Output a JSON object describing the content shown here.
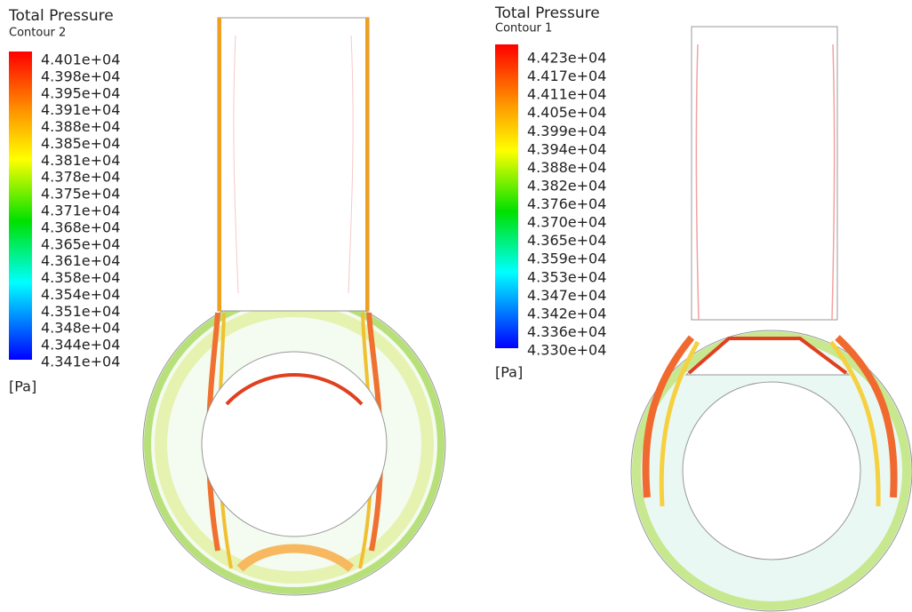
{
  "panels": [
    {
      "title": "Total Pressure",
      "subtitle": "Contour 2",
      "unit": "[Pa]",
      "labels": [
        "4.401e+04",
        "4.398e+04",
        "4.395e+04",
        "4.391e+04",
        "4.388e+04",
        "4.385e+04",
        "4.381e+04",
        "4.378e+04",
        "4.375e+04",
        "4.371e+04",
        "4.368e+04",
        "4.365e+04",
        "4.361e+04",
        "4.358e+04",
        "4.354e+04",
        "4.351e+04",
        "4.348e+04",
        "4.344e+04",
        "4.341e+04"
      ]
    },
    {
      "title": "Total Pressure",
      "subtitle": "Contour 1",
      "unit": "[Pa]",
      "labels": [
        "4.423e+04",
        "4.417e+04",
        "4.411e+04",
        "4.405e+04",
        "4.399e+04",
        "4.394e+04",
        "4.388e+04",
        "4.382e+04",
        "4.376e+04",
        "4.370e+04",
        "4.365e+04",
        "4.359e+04",
        "4.353e+04",
        "4.347e+04",
        "4.342e+04",
        "4.336e+04",
        "4.330e+04"
      ]
    }
  ]
}
